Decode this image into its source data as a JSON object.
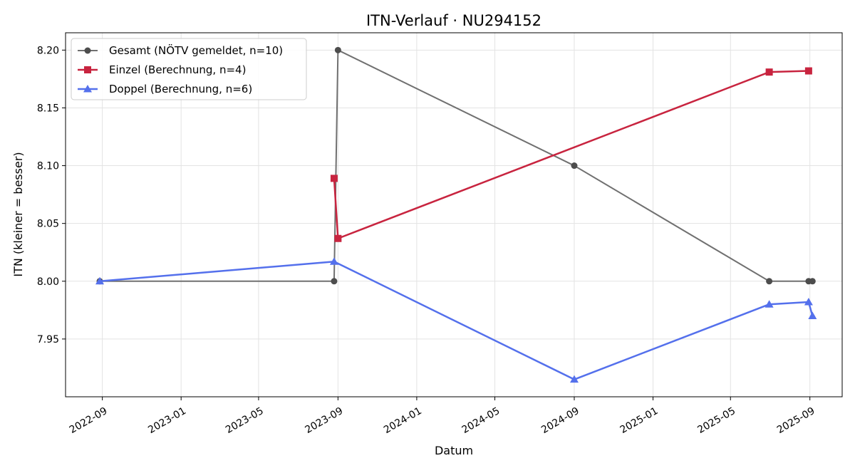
{
  "chart_data": {
    "type": "line",
    "title": "ITN-Verlauf · NU294152",
    "xlabel": "Datum",
    "ylabel": "ITN  (kleiner = besser)",
    "x_axis_type": "date",
    "xlim": [
      "2022-07-06",
      "2025-10-21"
    ],
    "ylim": [
      7.9,
      8.215
    ],
    "x_ticks": [
      "2022-09-01",
      "2023-01-01",
      "2023-05-01",
      "2023-09-01",
      "2024-01-01",
      "2024-05-01",
      "2024-09-01",
      "2025-01-01",
      "2025-05-01",
      "2025-09-01"
    ],
    "x_tick_labels": [
      "2022-09",
      "2023-01",
      "2023-05",
      "2023-09",
      "2024-01",
      "2024-05",
      "2024-09",
      "2025-01",
      "2025-05",
      "2025-09"
    ],
    "y_ticks": [
      7.95,
      8.0,
      8.05,
      8.1,
      8.15,
      8.2
    ],
    "y_tick_labels": [
      "7.95",
      "8.00",
      "8.05",
      "8.10",
      "8.15",
      "8.20"
    ],
    "grid": true,
    "legend_position": "upper-left",
    "series": [
      {
        "name": "Gesamt (NÖTV gemeldet, n=10)",
        "color": "#707070",
        "marker_color": "#4d4d4d",
        "marker": "circle",
        "points": [
          {
            "x": "2022-08-28",
            "y": 8.0
          },
          {
            "x": "2023-08-26",
            "y": 8.0
          },
          {
            "x": "2023-09-01",
            "y": 8.2
          },
          {
            "x": "2024-09-01",
            "y": 8.1
          },
          {
            "x": "2025-06-30",
            "y": 8.0
          },
          {
            "x": "2025-08-30",
            "y": 8.0
          },
          {
            "x": "2025-09-05",
            "y": 8.0
          }
        ]
      },
      {
        "name": "Einzel (Berechnung, n=4)",
        "color": "#c8243f",
        "marker_color": "#c8243f",
        "marker": "square",
        "points": [
          {
            "x": "2023-08-26",
            "y": 8.089
          },
          {
            "x": "2023-09-01",
            "y": 8.037
          },
          {
            "x": "2025-06-30",
            "y": 8.181
          },
          {
            "x": "2025-08-30",
            "y": 8.182
          }
        ]
      },
      {
        "name": "Doppel (Berechnung, n=6)",
        "color": "#5470ec",
        "marker_color": "#5470ec",
        "marker": "triangle",
        "points": [
          {
            "x": "2022-08-28",
            "y": 8.0
          },
          {
            "x": "2023-08-26",
            "y": 8.017
          },
          {
            "x": "2024-09-01",
            "y": 7.915
          },
          {
            "x": "2025-06-30",
            "y": 7.98
          },
          {
            "x": "2025-08-30",
            "y": 7.982
          },
          {
            "x": "2025-09-05",
            "y": 7.97
          }
        ]
      }
    ]
  }
}
